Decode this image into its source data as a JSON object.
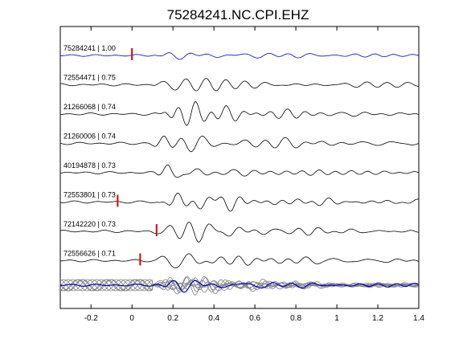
{
  "chart_data": {
    "type": "line",
    "title": "75284241.NC.CPI.EHZ",
    "xlabel": "",
    "ylabel": "",
    "xlim": [
      -0.35,
      1.4
    ],
    "x_ticks": [
      -0.2,
      0,
      0.2,
      0.4,
      0.6,
      0.8,
      1,
      1.2,
      1.4
    ],
    "x_tick_labels": [
      "-0.2",
      "0",
      "0.2",
      "0.4",
      "0.6",
      "0.8",
      "1",
      "1.2",
      "1.4"
    ],
    "grid": false,
    "colors": {
      "reference": "#0000cc",
      "trace": "#000000",
      "stack": "#808080",
      "pick": "#dd0000"
    },
    "traces": [
      {
        "label": "75284241 | 1.00",
        "pick": 0.0,
        "color": "reference",
        "seed": 1
      },
      {
        "label": "72554471 | 0.75",
        "pick": null,
        "color": "trace",
        "seed": 2
      },
      {
        "label": "21266068 | 0.74",
        "pick": null,
        "color": "trace",
        "seed": 3
      },
      {
        "label": "21260006 | 0.74",
        "pick": null,
        "color": "trace",
        "seed": 4
      },
      {
        "label": "40194878 | 0.73",
        "pick": null,
        "color": "trace",
        "seed": 5
      },
      {
        "label": "72553801 | 0.73",
        "pick": -0.07,
        "color": "trace",
        "seed": 6
      },
      {
        "label": "72142220 | 0.73",
        "pick": 0.12,
        "color": "trace",
        "seed": 7
      },
      {
        "label": "72556626 | 0.71",
        "pick": 0.04,
        "color": "trace",
        "seed": 8
      }
    ],
    "stack": {
      "overlay_count": 8,
      "reference_color": "reference",
      "overlay_color": "stack"
    }
  }
}
